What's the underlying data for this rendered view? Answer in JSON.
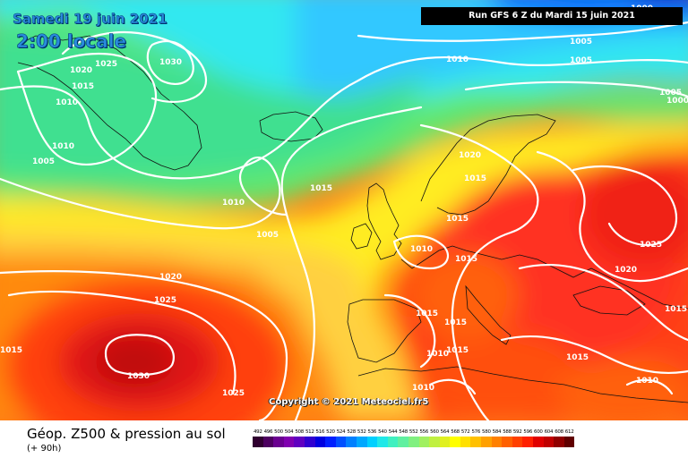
{
  "header": {
    "date": "Samedi 19 juin 2021",
    "time": "2:00 locale",
    "run_info": "Run GFS 6 Z du Mardi 15 juin 2021"
  },
  "map": {
    "copyright": "Copyright © 2021 Meteociel.fr5",
    "isobar_labels": [
      "1000",
      "1005",
      "1005",
      "1000",
      "1005",
      "1010",
      "1025",
      "1030",
      "1020",
      "1015",
      "1010",
      "1010",
      "1005",
      "1015",
      "1010",
      "1005",
      "1020",
      "1015",
      "1015",
      "1010",
      "1015",
      "1025",
      "1020",
      "1020",
      "1025",
      "1015",
      "1015",
      "1015",
      "1015",
      "1010",
      "1010",
      "1030",
      "1025",
      "1015",
      "1010",
      "1015"
    ]
  },
  "footer": {
    "title": "Géop. Z500 & pression au sol",
    "lead_time": "(+ 90h)"
  },
  "legend": {
    "ticks": [
      "492",
      "496",
      "500",
      "504",
      "508",
      "512",
      "516",
      "520",
      "524",
      "528",
      "532",
      "536",
      "540",
      "544",
      "548",
      "552",
      "556",
      "560",
      "564",
      "568",
      "572",
      "576",
      "580",
      "584",
      "588",
      "592",
      "596",
      "600",
      "604",
      "608",
      "612"
    ],
    "colors": [
      "#300030",
      "#4d0060",
      "#6a0090",
      "#8000b0",
      "#6000c0",
      "#3000d0",
      "#0000e0",
      "#0020ff",
      "#0050ff",
      "#0080ff",
      "#00a8ff",
      "#00d0ff",
      "#20e8e8",
      "#40f0c0",
      "#60f0a0",
      "#80f080",
      "#a0f060",
      "#c0f040",
      "#e0f020",
      "#ffff00",
      "#ffe000",
      "#ffc000",
      "#ffa000",
      "#ff8000",
      "#ff6000",
      "#ff4000",
      "#ff2000",
      "#e00000",
      "#c00000",
      "#900000",
      "#600000"
    ]
  }
}
